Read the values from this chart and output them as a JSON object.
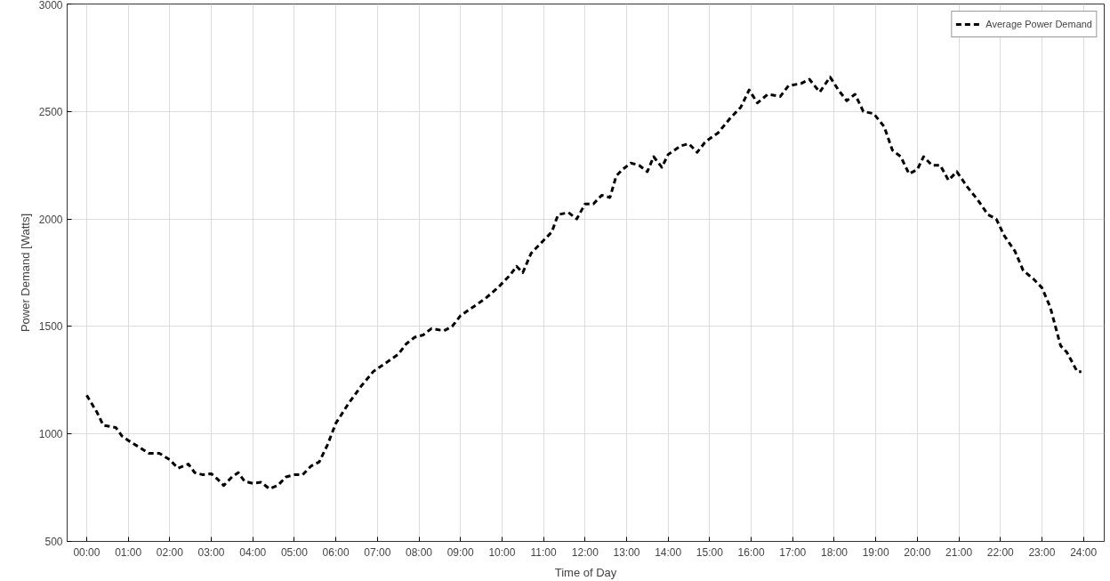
{
  "chart_data": {
    "type": "line",
    "xlabel": "Time of Day",
    "ylabel": "Power Demand [Watts]",
    "xlim": [
      -0.47,
      24.5
    ],
    "ylim": [
      500,
      3000
    ],
    "xticks": [
      {
        "value": 0,
        "label": "00:00"
      },
      {
        "value": 1,
        "label": "01:00"
      },
      {
        "value": 2,
        "label": "02:00"
      },
      {
        "value": 3,
        "label": "03:00"
      },
      {
        "value": 4,
        "label": "04:00"
      },
      {
        "value": 5,
        "label": "05:00"
      },
      {
        "value": 6,
        "label": "06:00"
      },
      {
        "value": 7,
        "label": "07:00"
      },
      {
        "value": 8,
        "label": "08:00"
      },
      {
        "value": 9,
        "label": "09:00"
      },
      {
        "value": 10,
        "label": "10:00"
      },
      {
        "value": 11,
        "label": "11:00"
      },
      {
        "value": 12,
        "label": "12:00"
      },
      {
        "value": 13,
        "label": "13:00"
      },
      {
        "value": 14,
        "label": "14:00"
      },
      {
        "value": 15,
        "label": "15:00"
      },
      {
        "value": 16,
        "label": "16:00"
      },
      {
        "value": 17,
        "label": "17:00"
      },
      {
        "value": 18,
        "label": "18:00"
      },
      {
        "value": 19,
        "label": "19:00"
      },
      {
        "value": 20,
        "label": "20:00"
      },
      {
        "value": 21,
        "label": "21:00"
      },
      {
        "value": 22,
        "label": "22:00"
      },
      {
        "value": 23,
        "label": "23:00"
      },
      {
        "value": 24,
        "label": "24:00"
      }
    ],
    "yticks": [
      500,
      1000,
      1500,
      2000,
      2500,
      3000
    ],
    "grid": true,
    "legend": "top right",
    "marker": "none",
    "line_style": "dashed",
    "series": [
      {
        "name": "Average Power Demand",
        "color": "#000000",
        "x": [
          0.0,
          0.25,
          0.4,
          0.7,
          0.85,
          1.0,
          1.25,
          1.5,
          1.75,
          2.0,
          2.2,
          2.45,
          2.6,
          2.8,
          3.0,
          3.15,
          3.3,
          3.5,
          3.65,
          3.8,
          4.0,
          4.2,
          4.4,
          4.6,
          4.8,
          5.0,
          5.2,
          5.4,
          5.6,
          5.8,
          6.0,
          6.3,
          6.6,
          6.9,
          7.2,
          7.5,
          7.7,
          7.9,
          8.1,
          8.3,
          8.6,
          8.8,
          9.0,
          9.3,
          9.6,
          9.9,
          10.2,
          10.35,
          10.5,
          10.7,
          11.0,
          11.2,
          11.35,
          11.6,
          11.8,
          12.0,
          12.2,
          12.4,
          12.6,
          12.75,
          12.9,
          13.1,
          13.3,
          13.5,
          13.65,
          13.85,
          14.0,
          14.3,
          14.5,
          14.7,
          14.9,
          15.2,
          15.5,
          15.75,
          15.95,
          16.15,
          16.4,
          16.7,
          16.9,
          17.2,
          17.4,
          17.65,
          17.9,
          18.1,
          18.3,
          18.5,
          18.7,
          18.95,
          19.2,
          19.4,
          19.6,
          19.8,
          20.0,
          20.15,
          20.35,
          20.55,
          20.75,
          20.95,
          21.2,
          21.45,
          21.7,
          21.9,
          22.1,
          22.35,
          22.55,
          22.8,
          23.0,
          23.2,
          23.45,
          23.6,
          23.85,
          23.95
        ],
        "values": [
          1180,
          1100,
          1040,
          1030,
          990,
          970,
          940,
          910,
          910,
          880,
          840,
          860,
          820,
          810,
          815,
          790,
          760,
          800,
          820,
          780,
          770,
          775,
          745,
          760,
          800,
          810,
          810,
          850,
          870,
          950,
          1050,
          1140,
          1220,
          1290,
          1330,
          1370,
          1420,
          1450,
          1460,
          1490,
          1480,
          1500,
          1550,
          1590,
          1630,
          1680,
          1740,
          1780,
          1750,
          1840,
          1900,
          1940,
          2020,
          2030,
          2000,
          2070,
          2070,
          2110,
          2100,
          2200,
          2230,
          2260,
          2250,
          2220,
          2290,
          2240,
          2300,
          2340,
          2350,
          2310,
          2360,
          2400,
          2470,
          2520,
          2600,
          2540,
          2580,
          2570,
          2620,
          2630,
          2650,
          2590,
          2660,
          2600,
          2550,
          2580,
          2500,
          2490,
          2430,
          2320,
          2290,
          2210,
          2230,
          2290,
          2250,
          2250,
          2180,
          2220,
          2150,
          2090,
          2020,
          2000,
          1920,
          1850,
          1760,
          1720,
          1680,
          1590,
          1410,
          1380,
          1290,
          1290
        ]
      }
    ]
  }
}
